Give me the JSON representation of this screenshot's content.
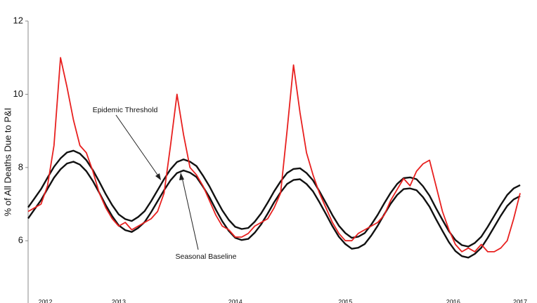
{
  "chart_data": {
    "type": "line",
    "y_label": "% of All Deaths Due to P&I",
    "x": [
      0,
      3,
      6,
      9,
      12,
      15,
      18,
      21,
      24,
      27,
      30,
      33,
      36,
      39,
      42,
      45,
      48,
      51,
      54,
      57,
      60,
      63,
      66,
      69,
      72,
      75,
      78,
      81,
      84,
      87,
      90,
      93,
      96,
      99,
      102,
      105,
      108,
      111,
      114,
      117,
      120,
      123,
      126,
      129,
      132,
      135,
      138,
      141,
      144,
      147,
      150,
      153,
      156,
      159,
      162,
      165,
      168,
      171,
      174,
      177,
      180,
      183,
      186,
      189,
      192,
      195,
      198,
      201,
      204,
      207,
      210,
      213,
      216,
      219,
      222,
      225,
      228
    ],
    "series": [
      {
        "color": "#e8201f",
        "values": [
          6.8,
          6.9,
          7.0,
          7.5,
          8.6,
          11.0,
          10.2,
          9.3,
          8.6,
          8.4,
          7.9,
          7.3,
          6.9,
          6.6,
          6.4,
          6.5,
          6.3,
          6.4,
          6.5,
          6.6,
          6.8,
          7.3,
          8.6,
          10.0,
          8.9,
          8.0,
          7.8,
          7.5,
          7.1,
          6.7,
          6.4,
          6.3,
          6.1,
          6.1,
          6.2,
          6.4,
          6.5,
          6.6,
          6.9,
          7.3,
          9.0,
          10.8,
          9.5,
          8.4,
          7.8,
          7.3,
          6.9,
          6.5,
          6.2,
          6.0,
          6.0,
          6.2,
          6.3,
          6.4,
          6.5,
          6.7,
          7.1,
          7.4,
          7.7,
          7.5,
          7.9,
          8.1,
          8.2,
          7.5,
          6.8,
          6.3,
          5.9,
          5.7,
          5.8,
          5.7,
          5.9,
          5.7,
          5.7,
          5.8,
          6.0,
          6.6,
          7.3
        ]
      },
      {
        "name": "Epidemic Threshold",
        "color": "#111111",
        "values": [
          6.91,
          7.16,
          7.41,
          7.72,
          8.02,
          8.25,
          8.41,
          8.46,
          8.38,
          8.2,
          7.93,
          7.61,
          7.27,
          6.97,
          6.72,
          6.59,
          6.54,
          6.65,
          6.81,
          7.08,
          7.38,
          7.68,
          7.95,
          8.15,
          8.22,
          8.16,
          8.04,
          7.78,
          7.49,
          7.15,
          6.83,
          6.57,
          6.38,
          6.32,
          6.35,
          6.52,
          6.75,
          7.04,
          7.35,
          7.62,
          7.85,
          7.96,
          7.98,
          7.85,
          7.65,
          7.35,
          7.03,
          6.7,
          6.41,
          6.21,
          6.08,
          6.11,
          6.21,
          6.44,
          6.71,
          7.02,
          7.31,
          7.55,
          7.71,
          7.73,
          7.68,
          7.49,
          7.23,
          6.89,
          6.57,
          6.26,
          6.02,
          5.88,
          5.84,
          5.94,
          6.11,
          6.38,
          6.68,
          6.98,
          7.25,
          7.43,
          7.52
        ]
      },
      {
        "name": "Seasonal Baseline",
        "color": "#111111",
        "values": [
          6.61,
          6.86,
          7.11,
          7.42,
          7.72,
          7.95,
          8.11,
          8.16,
          8.08,
          7.9,
          7.63,
          7.31,
          6.97,
          6.67,
          6.42,
          6.29,
          6.24,
          6.35,
          6.51,
          6.78,
          7.08,
          7.38,
          7.65,
          7.85,
          7.92,
          7.86,
          7.74,
          7.48,
          7.19,
          6.85,
          6.53,
          6.27,
          6.08,
          6.02,
          6.05,
          6.22,
          6.45,
          6.74,
          7.05,
          7.32,
          7.55,
          7.66,
          7.68,
          7.55,
          7.35,
          7.05,
          6.73,
          6.4,
          6.11,
          5.91,
          5.78,
          5.81,
          5.91,
          6.14,
          6.41,
          6.72,
          7.01,
          7.25,
          7.41,
          7.43,
          7.38,
          7.19,
          6.93,
          6.59,
          6.27,
          5.96,
          5.72,
          5.58,
          5.54,
          5.64,
          5.81,
          6.08,
          6.38,
          6.68,
          6.95,
          7.13,
          7.22
        ]
      }
    ],
    "xlim": [
      0,
      228
    ],
    "xticks": [
      {
        "value": 8,
        "label": "2012"
      },
      {
        "value": 42,
        "label": "2013"
      },
      {
        "value": 96,
        "label": "2014"
      },
      {
        "value": 147,
        "label": "2015"
      },
      {
        "value": 197,
        "label": "2016"
      },
      {
        "value": 228,
        "label": "2017"
      }
    ],
    "ylim": [
      4.3,
      12
    ],
    "yticks": [
      6,
      8,
      10,
      12
    ]
  }
}
